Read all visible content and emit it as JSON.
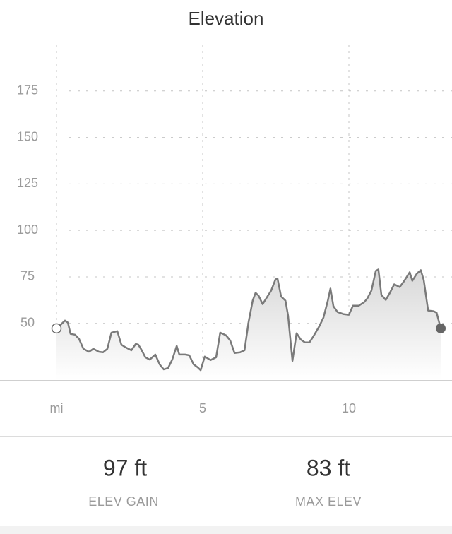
{
  "header": {
    "title": "Elevation"
  },
  "chart_data": {
    "type": "area",
    "x": [
      0,
      0.14,
      0.29,
      0.39,
      0.48,
      0.63,
      0.77,
      0.92,
      1.11,
      1.26,
      1.45,
      1.59,
      1.74,
      1.88,
      2.08,
      2.22,
      2.37,
      2.56,
      2.71,
      2.8,
      2.9,
      3.04,
      3.19,
      3.38,
      3.53,
      3.67,
      3.82,
      3.96,
      4.11,
      4.2,
      4.4,
      4.54,
      4.69,
      4.83,
      4.93,
      5.07,
      5.27,
      5.46,
      5.6,
      5.8,
      5.94,
      6.09,
      6.28,
      6.43,
      6.57,
      6.71,
      6.81,
      6.91,
      7.05,
      7.2,
      7.34,
      7.49,
      7.56,
      7.68,
      7.83,
      7.92,
      8.07,
      8.21,
      8.36,
      8.5,
      8.65,
      8.79,
      8.99,
      9.13,
      9.28,
      9.37,
      9.47,
      9.61,
      9.81,
      10,
      10.14,
      10.34,
      10.53,
      10.63,
      10.77,
      10.92,
      11.01,
      11.11,
      11.26,
      11.4,
      11.55,
      11.74,
      11.88,
      12.08,
      12.17,
      12.32,
      12.46,
      12.56,
      12.71,
      12.9,
      13,
      13.14
    ],
    "series": [
      {
        "color": "#7a7a7a",
        "values": [
          47.3,
          49.2,
          51.5,
          50.4,
          44.3,
          43.9,
          41.6,
          36.3,
          34.7,
          36.3,
          34.7,
          34.4,
          36.3,
          45,
          45.8,
          38.5,
          37,
          35.5,
          38.9,
          38.5,
          35.9,
          31.7,
          30.5,
          33.2,
          27.9,
          25.2,
          26,
          30.5,
          37.8,
          33.2,
          33.2,
          32.8,
          27.9,
          26.3,
          24.8,
          32.1,
          30.2,
          31.7,
          45,
          43.5,
          40.8,
          34,
          34.4,
          35.5,
          50.8,
          62.2,
          66.4,
          64.9,
          60.3,
          64.1,
          67.6,
          73.7,
          74,
          64.5,
          62.2,
          54.2,
          29.8,
          44.7,
          41.2,
          39.7,
          39.7,
          43.1,
          48.5,
          53.1,
          62.2,
          68.7,
          59.2,
          56.1,
          55,
          54.6,
          59.5,
          59.5,
          61.5,
          63.4,
          67.6,
          78.2,
          79,
          65.3,
          62.6,
          66.4,
          71,
          69.5,
          72.5,
          77.5,
          72.9,
          76.7,
          78.6,
          73.3,
          56.9,
          56.5,
          55.7,
          47.3
        ]
      }
    ],
    "xlim": [
      0,
      13.14
    ],
    "ylim": [
      19.5,
      200
    ],
    "xticks": [
      {
        "value": 0,
        "label": "mi"
      },
      5,
      10
    ],
    "yticks": [
      50,
      75,
      100,
      125,
      150,
      175
    ],
    "grid": true
  },
  "stats": [
    {
      "value": "97 ft",
      "label": "ELEV GAIN"
    },
    {
      "value": "83 ft",
      "label": "MAX ELEV"
    }
  ]
}
